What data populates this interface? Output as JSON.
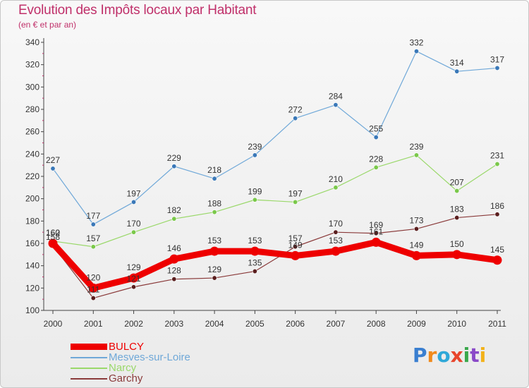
{
  "header": {
    "title": "Evolution des Impôts locaux par Habitant",
    "subtitle": "(en € et par an)"
  },
  "logo": {
    "letters": [
      "P",
      "r",
      "o",
      "x",
      "i",
      "t",
      "i"
    ],
    "colors": [
      "#3a7fd0",
      "#f08a1c",
      "#2fa8d8",
      "#e8452c",
      "#3aa84c",
      "#8a4ac8",
      "#f2b21a"
    ]
  },
  "chart_data": {
    "type": "line",
    "title": "Evolution des Impôts locaux par Habitant",
    "subtitle": "(en € et par an)",
    "categories": [
      "2000",
      "2001",
      "2002",
      "2003",
      "2004",
      "2005",
      "2006",
      "2007",
      "2008",
      "2009",
      "2010",
      "2011"
    ],
    "ylim": [
      100,
      340
    ],
    "yticks": [
      100,
      120,
      140,
      160,
      180,
      200,
      220,
      240,
      260,
      280,
      300,
      320,
      340
    ],
    "grid": false,
    "legend_position": "bottom-left",
    "series": [
      {
        "name": "Mesves-sur-Loire",
        "color": "#6fa8d8",
        "marker": "#3a78b8",
        "width": 1.2,
        "values": [
          227,
          177,
          197,
          229,
          218,
          239,
          272,
          284,
          255,
          332,
          314,
          317
        ]
      },
      {
        "name": "Narcy",
        "color": "#9ad86a",
        "marker": "#7ac84a",
        "width": 1.2,
        "values": [
          162,
          157,
          170,
          182,
          188,
          199,
          197,
          210,
          228,
          239,
          207,
          231
        ]
      },
      {
        "name": "Garchy",
        "color": "#8a3a3a",
        "marker": "#5a1e1e",
        "width": 1.2,
        "values": [
          158,
          111,
          121,
          128,
          129,
          135,
          157,
          170,
          169,
          173,
          183,
          186
        ]
      },
      {
        "name": "BULCY",
        "color": "#ee0000",
        "marker": "#ee0000",
        "width": 9,
        "values": [
          160,
          120,
          129,
          146,
          153,
          153,
          149,
          153,
          161,
          149,
          150,
          145
        ]
      }
    ],
    "data_labels": [
      {
        "series": "Mesves-sur-Loire",
        "labels": [
          "227",
          "177",
          "197",
          "229",
          "218",
          "239",
          "272",
          "284",
          "255",
          "332",
          "314",
          "317"
        ]
      },
      {
        "series": "Narcy",
        "labels": [
          "162",
          "157",
          "170",
          "182",
          "188",
          "199",
          "197",
          "210",
          "228",
          "239",
          "207",
          "231"
        ]
      },
      {
        "series": "Garchy",
        "labels": [
          "158",
          "111",
          "121",
          "128",
          "129",
          "135",
          "157",
          "170",
          "169",
          "173",
          "183",
          "186"
        ]
      },
      {
        "series": "BULCY",
        "labels": [
          "160",
          "120",
          "129",
          "146",
          "153",
          "153",
          "149",
          "153",
          "161",
          "149",
          "150",
          "145"
        ]
      }
    ]
  }
}
